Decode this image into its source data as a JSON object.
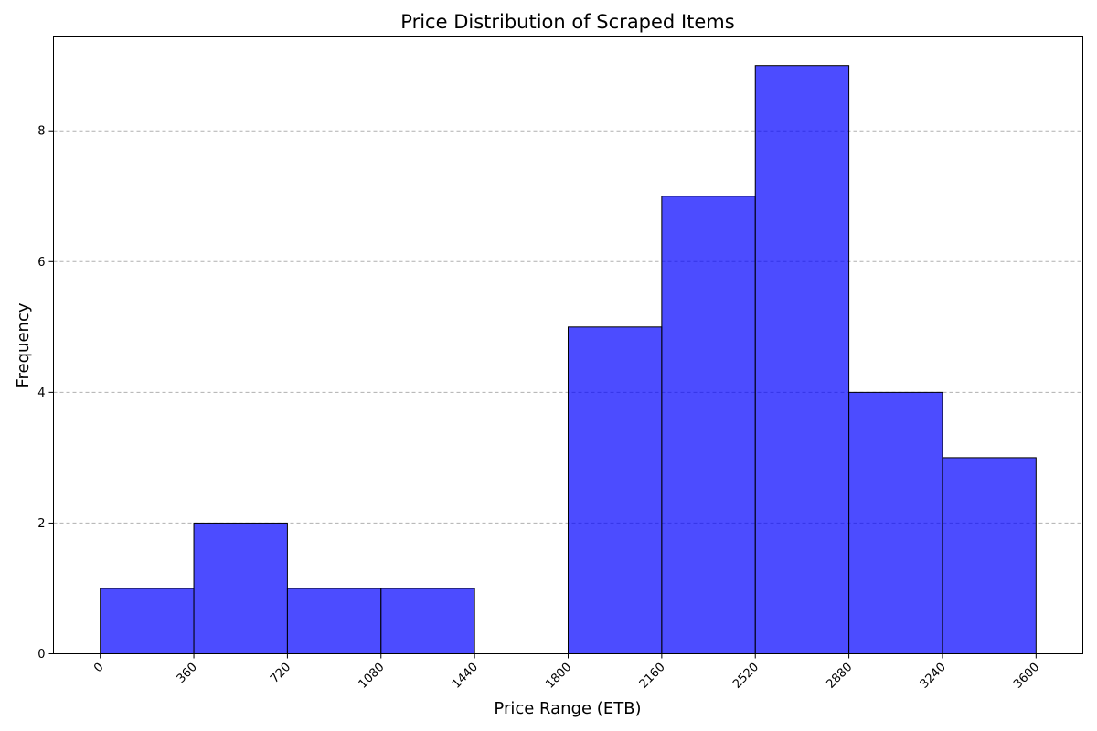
{
  "chart_data": {
    "type": "bar",
    "title": "Price Distribution of Scraped Items",
    "xlabel": "Price Range (ETB)",
    "ylabel": "Frequency",
    "bin_edges": [
      0,
      360,
      720,
      1080,
      1440,
      1800,
      2160,
      2520,
      2880,
      3240,
      3600
    ],
    "values": [
      1,
      2,
      1,
      1,
      0,
      5,
      7,
      9,
      4,
      3
    ],
    "xticks": [
      "0",
      "360",
      "720",
      "1080",
      "1440",
      "1800",
      "2160",
      "2520",
      "2880",
      "3240",
      "3600"
    ],
    "yticks": [
      "0",
      "2",
      "4",
      "6",
      "8"
    ],
    "xlim": [
      -180,
      3780
    ],
    "ylim": [
      0,
      9.45
    ],
    "grid": "y-dashed",
    "colors": {
      "bar_fill": "#0000ff",
      "bar_opacity": 0.7,
      "bar_edge": "#000000",
      "grid": "#b0b0b0"
    }
  }
}
